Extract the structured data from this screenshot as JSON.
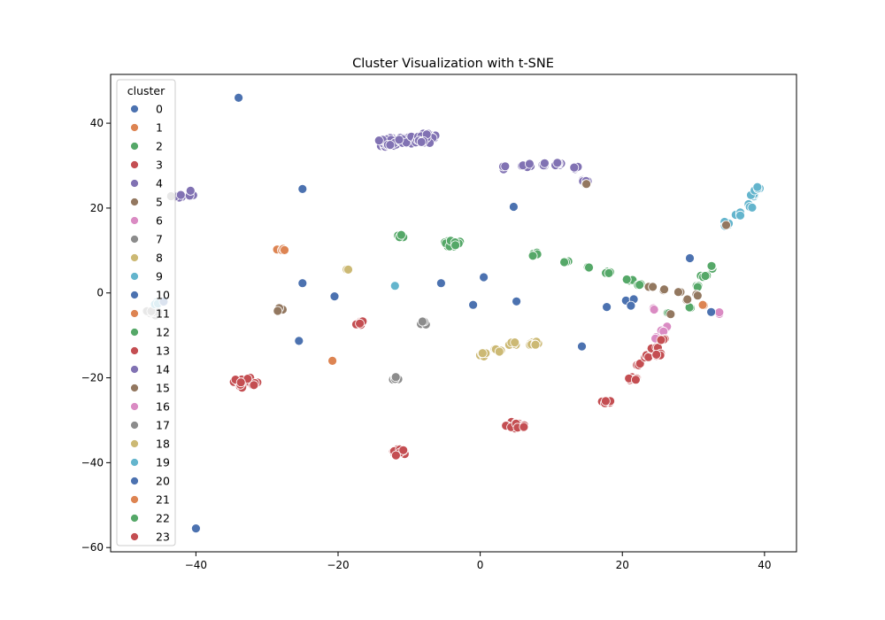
{
  "chart_data": {
    "type": "scatter",
    "title": "Cluster Visualization with t-SNE",
    "xlabel": "",
    "ylabel": "",
    "xlim": [
      -52,
      44.5
    ],
    "ylim": [
      -61,
      51.5
    ],
    "xticks": [
      -40,
      -20,
      0,
      20,
      40
    ],
    "yticks": [
      -60,
      -40,
      -20,
      0,
      20,
      40
    ],
    "tick_labels": {
      "x": [
        "−40",
        "−20",
        "0",
        "20",
        "40"
      ],
      "y": [
        "−60",
        "−40",
        "−20",
        "0",
        "20",
        "40"
      ]
    },
    "grid": false,
    "legend": {
      "title": "cluster",
      "placement": "upper-left",
      "entries": [
        "0",
        "1",
        "2",
        "3",
        "4",
        "5",
        "6",
        "7",
        "8",
        "9",
        "10",
        "11",
        "12",
        "13",
        "14",
        "15",
        "16",
        "17",
        "18",
        "19",
        "20",
        "21",
        "22",
        "23"
      ]
    },
    "colors": [
      "#4c72b0",
      "#dd8452",
      "#55a868",
      "#c44e52",
      "#8172b3",
      "#937860",
      "#da8bc3",
      "#8c8c8c",
      "#ccb974",
      "#64b5cd"
    ],
    "clusters": [
      {
        "label": "0",
        "points": [
          [
            -34,
            46
          ],
          [
            -25,
            24.5
          ],
          [
            4.7,
            20.3
          ],
          [
            29.5,
            8.2
          ]
        ],
        "n": 1,
        "spread": 0.2
      },
      {
        "label": "14",
        "points": [
          [
            -13,
            35.5
          ],
          [
            -10,
            36
          ],
          [
            -7.5,
            36.5
          ]
        ],
        "n": 22,
        "spread": 1.2
      },
      {
        "label": "14",
        "points": [
          [
            3.5,
            29.5
          ],
          [
            6.5,
            30
          ]
        ],
        "n": 6,
        "spread": 0.6
      },
      {
        "label": "14",
        "points": [
          [
            9,
            30.3
          ],
          [
            11,
            30.3
          ],
          [
            13.5,
            29.5
          ],
          [
            14.7,
            26.5
          ]
        ],
        "n": 7,
        "spread": 0.4
      },
      {
        "label": "14",
        "points": [
          [
            -42.5,
            22.5
          ],
          [
            -40.5,
            23.5
          ]
        ],
        "n": 5,
        "spread": 0.7
      },
      {
        "label": "15",
        "points": [
          [
            15,
            25.7
          ]
        ],
        "n": 2,
        "spread": 0.2
      },
      {
        "label": "19",
        "points": [
          [
            34.5,
            16.3
          ],
          [
            36.5,
            18.5
          ],
          [
            38,
            20.5
          ],
          [
            38.5,
            23
          ],
          [
            39,
            24.5
          ]
        ],
        "n": 4,
        "spread": 0.5
      },
      {
        "label": "15",
        "points": [
          [
            34.6,
            16
          ]
        ],
        "n": 1,
        "spread": 0.1
      },
      {
        "label": "17",
        "points": [
          [
            -43.5,
            22.8
          ]
        ],
        "n": 1,
        "spread": 0.1
      },
      {
        "label": "2",
        "points": [
          [
            -11,
            13.5
          ]
        ],
        "n": 5,
        "spread": 0.6
      },
      {
        "label": "2",
        "points": [
          [
            -4,
            11.8
          ]
        ],
        "n": 14,
        "spread": 1.0
      },
      {
        "label": "2",
        "points": [
          [
            7.5,
            9.2
          ]
        ],
        "n": 5,
        "spread": 0.5
      },
      {
        "label": "2",
        "points": [
          [
            12,
            7.5
          ],
          [
            15,
            6
          ],
          [
            18,
            5
          ],
          [
            21,
            3
          ],
          [
            22.5,
            2
          ]
        ],
        "n": 4,
        "spread": 0.4
      },
      {
        "label": "2",
        "points": [
          [
            30.5,
            1.5
          ],
          [
            31.5,
            4
          ],
          [
            32.5,
            6
          ]
        ],
        "n": 4,
        "spread": 0.4
      },
      {
        "label": "2",
        "points": [
          [
            29.5,
            -3.5
          ],
          [
            26.5,
            -4.8
          ]
        ],
        "n": 2,
        "spread": 0.2
      },
      {
        "label": "1",
        "points": [
          [
            -28,
            10.3
          ]
        ],
        "n": 5,
        "spread": 0.5
      },
      {
        "label": "1",
        "points": [
          [
            -20.8,
            -16
          ]
        ],
        "n": 1,
        "spread": 0.1
      },
      {
        "label": "1",
        "points": [
          [
            31.5,
            -3
          ]
        ],
        "n": 3,
        "spread": 0.3
      },
      {
        "label": "18",
        "points": [
          [
            -18.5,
            5.5
          ]
        ],
        "n": 3,
        "spread": 0.3
      },
      {
        "label": "18",
        "points": [
          [
            0.5,
            -14.5
          ],
          [
            2.5,
            -13.5
          ],
          [
            4.5,
            -12
          ],
          [
            7,
            -12
          ],
          [
            7.8,
            -11.8
          ]
        ],
        "n": 5,
        "spread": 0.5
      },
      {
        "label": "19",
        "points": [
          [
            -12,
            1.8
          ]
        ],
        "n": 2,
        "spread": 0.2
      },
      {
        "label": "0",
        "points": [
          [
            -25,
            2.3
          ],
          [
            -20.5,
            -0.8
          ],
          [
            -5.5,
            2.3
          ],
          [
            0.5,
            3.7
          ],
          [
            5.1,
            -2
          ],
          [
            -1,
            -2.8
          ],
          [
            -25.5,
            -11.3
          ],
          [
            14.3,
            -12.6
          ],
          [
            -40,
            -55.5
          ]
        ],
        "n": 1,
        "spread": 0.2
      },
      {
        "label": "0",
        "points": [
          [
            17.8,
            -3.3
          ],
          [
            20.5,
            -1.8
          ],
          [
            21.6,
            -1.5
          ],
          [
            21.2,
            -3
          ]
        ],
        "n": 1,
        "spread": 0.15
      },
      {
        "label": "17",
        "points": [
          [
            -46,
            -4.5
          ]
        ],
        "n": 10,
        "spread": 0.9
      },
      {
        "label": "19",
        "points": [
          [
            -45.3,
            -2.5
          ]
        ],
        "n": 3,
        "spread": 0.5
      },
      {
        "label": "0",
        "points": [
          [
            -44.5,
            -2
          ]
        ],
        "n": 2,
        "spread": 0.3
      },
      {
        "label": "5",
        "points": [
          [
            -28,
            -4
          ]
        ],
        "n": 4,
        "spread": 0.5
      },
      {
        "label": "5",
        "points": [
          [
            24,
            1.3
          ],
          [
            26,
            0.6
          ],
          [
            28,
            0.3
          ],
          [
            29.2,
            -1.5
          ],
          [
            30.5,
            -0.5
          ]
        ],
        "n": 2,
        "spread": 0.3
      },
      {
        "label": "5",
        "points": [
          [
            26.8,
            -5
          ]
        ],
        "n": 1,
        "spread": 0.1
      },
      {
        "label": "3",
        "points": [
          [
            -17,
            -7
          ]
        ],
        "n": 6,
        "spread": 0.6
      },
      {
        "label": "7",
        "points": [
          [
            -8,
            -7.2
          ]
        ],
        "n": 4,
        "spread": 0.5
      },
      {
        "label": "7",
        "points": [
          [
            -12,
            -20
          ]
        ],
        "n": 5,
        "spread": 0.5
      },
      {
        "label": "16",
        "points": [
          [
            24.3,
            -3.8
          ],
          [
            33.7,
            -4.8
          ],
          [
            26.5,
            -8
          ],
          [
            25.5,
            -9
          ],
          [
            24.8,
            -10.5
          ]
        ],
        "n": 2,
        "spread": 0.3
      },
      {
        "label": "10",
        "points": [
          [
            32.5,
            -4.5
          ]
        ],
        "n": 1,
        "spread": 0.1
      },
      {
        "label": "3",
        "points": [
          [
            -33,
            -21
          ]
        ],
        "n": 20,
        "spread": 1.4
      },
      {
        "label": "3",
        "points": [
          [
            -11.5,
            -37.5
          ]
        ],
        "n": 14,
        "spread": 0.9
      },
      {
        "label": "3",
        "points": [
          [
            5,
            -31
          ]
        ],
        "n": 22,
        "spread": 1.2
      },
      {
        "label": "3",
        "points": [
          [
            17.8,
            -25.5
          ]
        ],
        "n": 6,
        "spread": 0.6
      },
      {
        "label": "3",
        "points": [
          [
            21.5,
            -20.5
          ]
        ],
        "n": 7,
        "spread": 0.7
      },
      {
        "label": "3",
        "points": [
          [
            22.5,
            -17
          ],
          [
            23.5,
            -15
          ],
          [
            24.5,
            -13
          ],
          [
            25.5,
            -11
          ],
          [
            25.2,
            -14.6
          ]
        ],
        "n": 4,
        "spread": 0.45
      }
    ]
  }
}
